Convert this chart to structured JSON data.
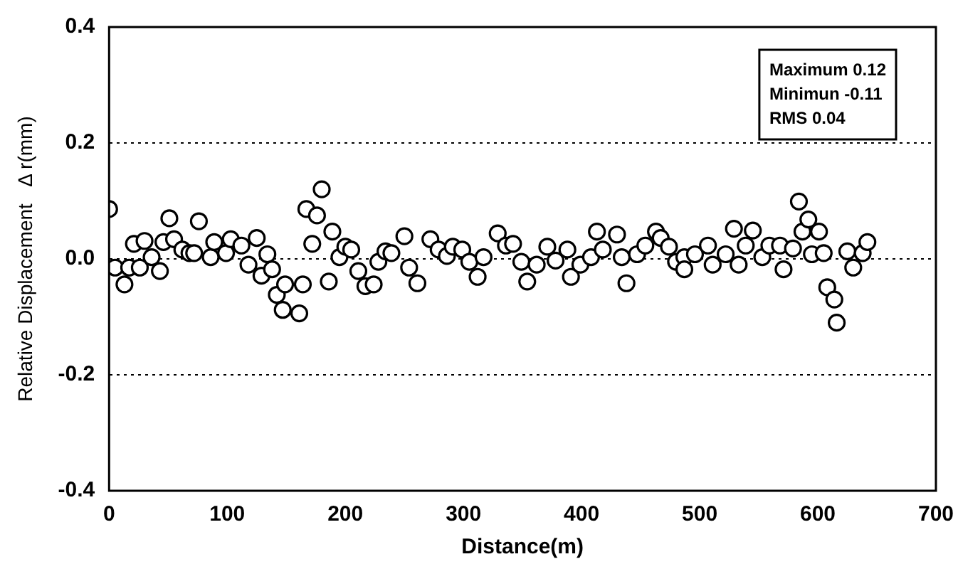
{
  "chart_data": {
    "type": "scatter",
    "xlabel": "Distance(m)",
    "ylabel": "Relative Displacement   Δ r(mm)",
    "x": [
      0,
      5,
      13,
      17,
      21,
      26,
      30,
      36,
      43,
      46,
      51,
      55,
      62,
      68,
      72,
      76,
      86,
      89,
      99,
      103,
      112,
      118,
      125,
      129,
      134,
      138,
      142,
      147,
      149,
      161,
      164,
      167,
      172,
      176,
      180,
      186,
      189,
      195,
      200,
      205,
      211,
      217,
      224,
      228,
      234,
      239,
      250,
      254,
      261,
      272,
      279,
      286,
      291,
      299,
      305,
      312,
      317,
      329,
      336,
      342,
      349,
      354,
      362,
      371,
      378,
      388,
      391,
      399,
      408,
      413,
      418,
      430,
      434,
      438,
      447,
      454,
      463,
      467,
      474,
      480,
      487,
      487,
      496,
      507,
      511,
      522,
      529,
      533,
      539,
      545,
      553,
      559,
      568,
      571,
      579,
      584,
      587,
      592,
      595,
      601,
      605,
      608,
      614,
      616,
      625,
      630,
      638,
      642
    ],
    "values": [
      0.086,
      -0.015,
      -0.044,
      -0.015,
      0.026,
      -0.015,
      0.031,
      0.003,
      -0.021,
      0.029,
      0.07,
      0.034,
      0.016,
      0.01,
      0.01,
      0.065,
      0.003,
      0.029,
      0.01,
      0.034,
      0.023,
      -0.01,
      0.036,
      -0.029,
      0.008,
      -0.018,
      -0.062,
      -0.088,
      -0.044,
      -0.094,
      -0.044,
      0.086,
      0.026,
      0.075,
      0.12,
      -0.039,
      0.047,
      0.003,
      0.021,
      0.016,
      -0.021,
      -0.047,
      -0.044,
      -0.005,
      0.013,
      0.01,
      0.039,
      -0.015,
      -0.042,
      0.034,
      0.016,
      0.005,
      0.021,
      0.016,
      -0.005,
      -0.031,
      0.003,
      0.044,
      0.023,
      0.026,
      -0.005,
      -0.039,
      -0.01,
      0.021,
      -0.003,
      0.016,
      -0.031,
      -0.01,
      0.003,
      0.047,
      0.016,
      0.042,
      0.003,
      -0.042,
      0.008,
      0.023,
      0.047,
      0.036,
      0.021,
      -0.005,
      0.003,
      -0.018,
      0.008,
      0.023,
      -0.01,
      0.008,
      0.052,
      -0.01,
      0.023,
      0.049,
      0.003,
      0.023,
      0.023,
      -0.018,
      0.018,
      0.099,
      0.047,
      0.068,
      0.008,
      0.047,
      0.01,
      -0.049,
      -0.07,
      -0.11,
      0.013,
      -0.015,
      0.01,
      0.029
    ],
    "color": "#000000",
    "marker": "circle",
    "xlim": [
      0,
      700
    ],
    "xticks": [
      0,
      100,
      200,
      300,
      400,
      500,
      600,
      700
    ],
    "ylim": [
      -0.4,
      0.4
    ],
    "yticks": [
      {
        "value": -0.4,
        "label": "-0.4"
      },
      {
        "value": -0.2,
        "label": "-0.2"
      },
      {
        "value": 0,
        "label": "0.0"
      },
      {
        "value": 0.2,
        "label": "0.2"
      },
      {
        "value": 0.4,
        "label": "0.4"
      }
    ],
    "grid": "y",
    "legend": false,
    "annotations": [
      "Maximum 0.12",
      "Minimun -0.11",
      "RMS 0.04"
    ]
  }
}
